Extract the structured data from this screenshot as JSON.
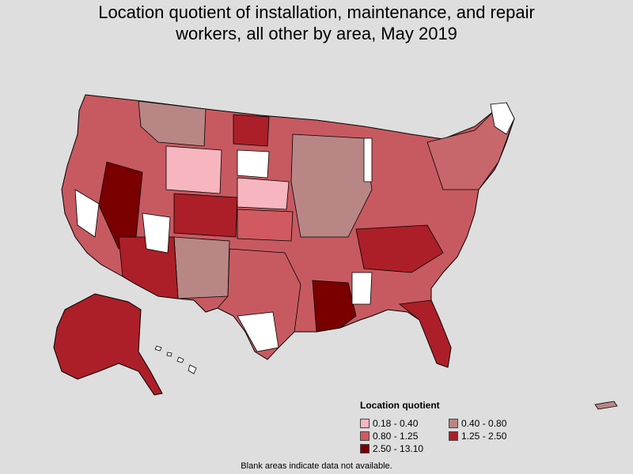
{
  "title_line1": "Location quotient of installation, maintenance, and repair",
  "title_line2": "workers, all other by area, May 2019",
  "legend": {
    "title": "Location quotient",
    "items": [
      {
        "label": "0.18 - 0.40",
        "color": "#f7b6bf"
      },
      {
        "label": "0.40 - 0.80",
        "color": "#b98686"
      },
      {
        "label": "0.80 - 1.25",
        "color": "#d05a60"
      },
      {
        "label": "1.25 - 2.50",
        "color": "#ac1f28"
      },
      {
        "label": "2.50 - 13.10",
        "color": "#7a0000"
      }
    ]
  },
  "footnote": "Blank areas indicate data not available.",
  "colors": {
    "background": "#dedede",
    "no_data": "#ffffff",
    "border": "#000000"
  }
}
